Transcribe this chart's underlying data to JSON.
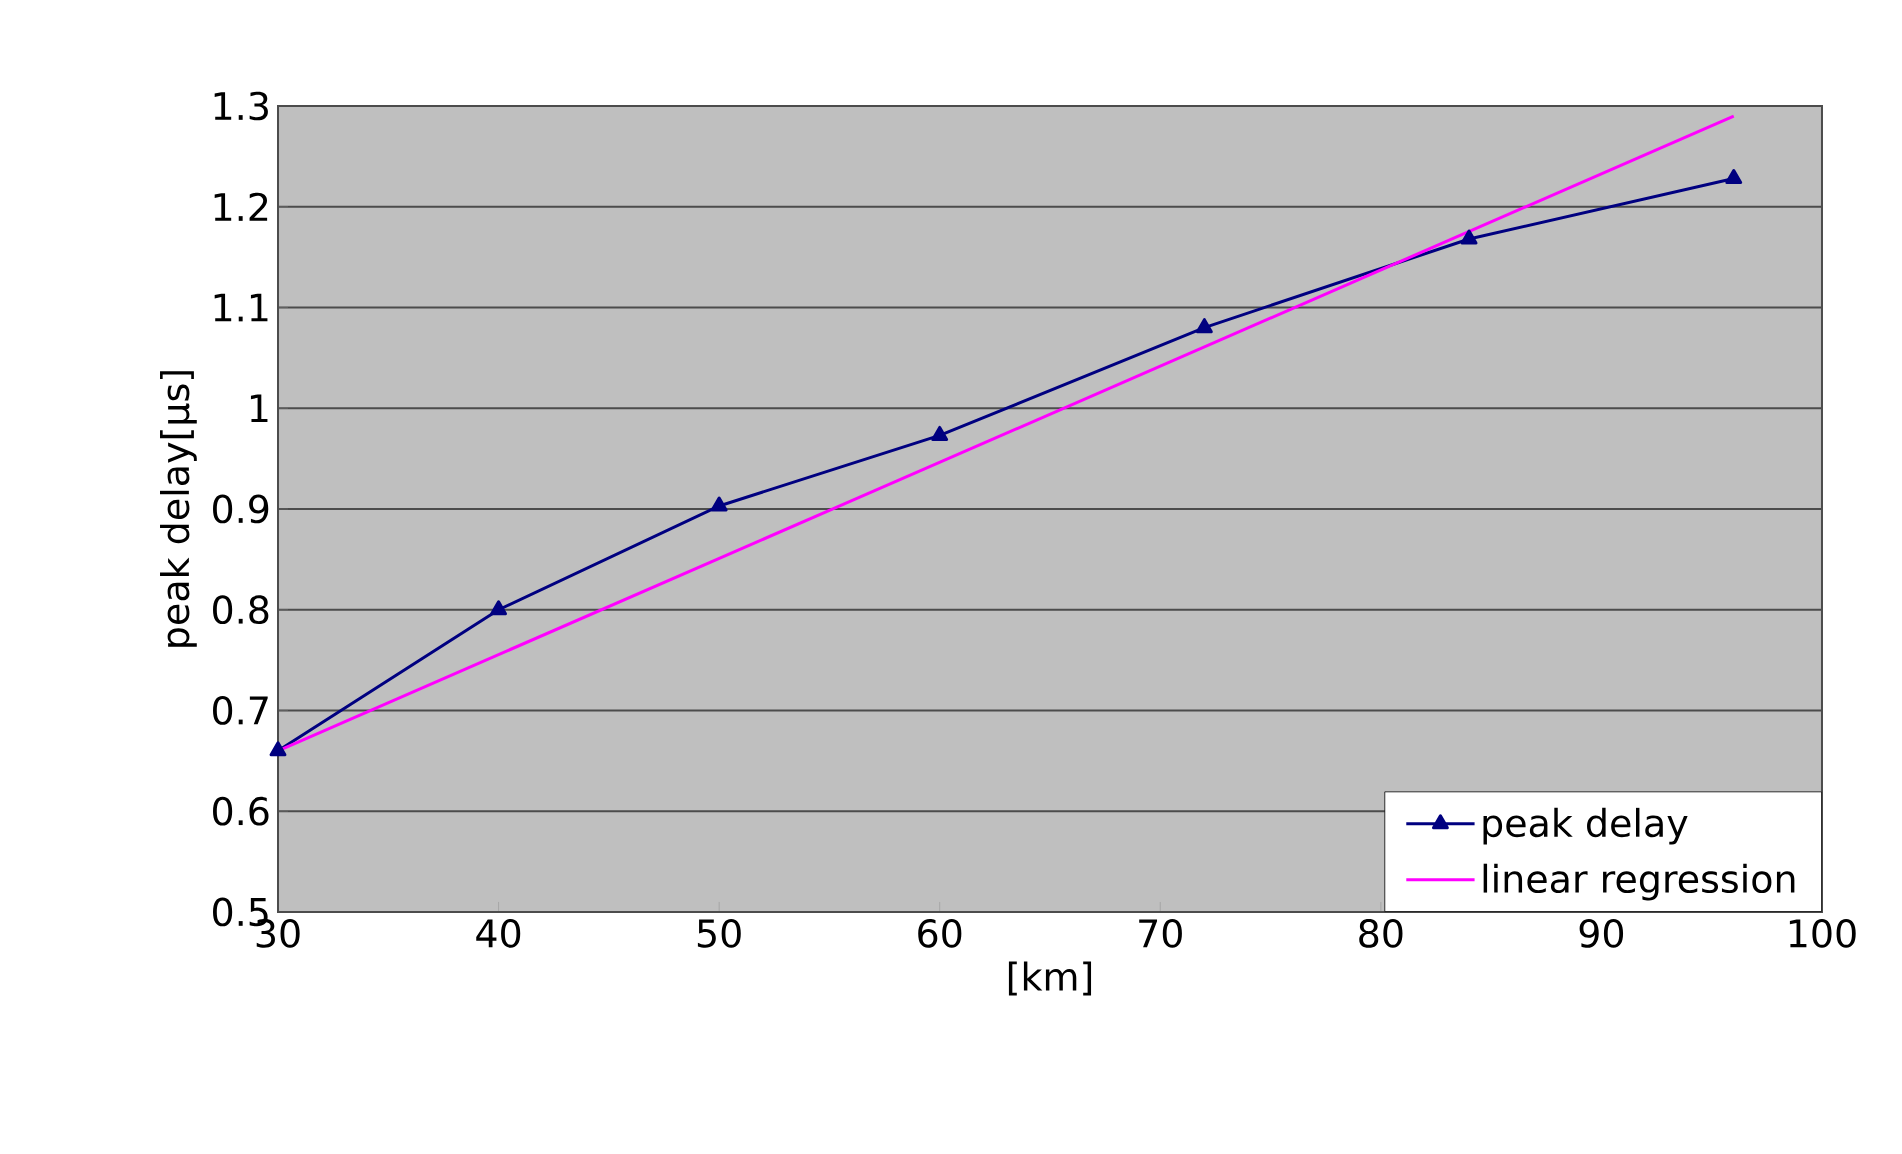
{
  "chart_data": {
    "type": "line",
    "xlabel": "[km]",
    "ylabel": "peak delay[μs]",
    "xlim": [
      30,
      100
    ],
    "xticks": [
      30,
      40,
      50,
      60,
      70,
      80,
      90,
      100
    ],
    "ylim": [
      0.5,
      1.3
    ],
    "yticks": [
      0.5,
      0.6,
      0.7,
      0.8,
      0.9,
      1,
      1.1,
      1.2,
      1.3
    ],
    "grid": "y",
    "legend": "bottom right",
    "series": [
      {
        "name": "peak delay",
        "color": "#000080",
        "marker": "triangle",
        "x": [
          30,
          40,
          50,
          60,
          72,
          84,
          96
        ],
        "values": [
          0.66,
          0.8,
          0.903,
          0.973,
          1.08,
          1.168,
          1.228
        ]
      },
      {
        "name": "linear regression",
        "color": "#ff00ff",
        "marker": "none",
        "x": [
          30,
          96
        ],
        "values": [
          0.66,
          1.29
        ]
      }
    ]
  }
}
